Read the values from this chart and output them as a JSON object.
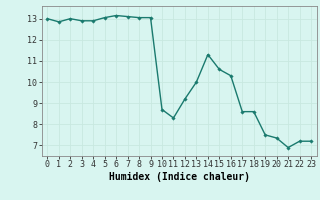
{
  "x": [
    0,
    1,
    2,
    3,
    4,
    5,
    6,
    7,
    8,
    9,
    10,
    11,
    12,
    13,
    14,
    15,
    16,
    17,
    18,
    19,
    20,
    21,
    22,
    23
  ],
  "y": [
    13.0,
    12.85,
    13.0,
    12.9,
    12.9,
    13.05,
    13.15,
    13.1,
    13.05,
    13.05,
    8.7,
    8.3,
    9.2,
    10.0,
    11.3,
    10.6,
    10.3,
    8.6,
    8.6,
    7.5,
    7.35,
    6.9,
    7.2,
    7.2
  ],
  "line_color": "#1a7a6e",
  "marker": "D",
  "marker_size": 1.8,
  "linewidth": 1.0,
  "bg_color": "#d8f5f0",
  "grid_color": "#c8e8e0",
  "grid_color_minor": "#e0f0ec",
  "xlabel": "Humidex (Indice chaleur)",
  "xlabel_fontsize": 7,
  "xlabel_fontfamily": "monospace",
  "ylabel_ticks": [
    7,
    8,
    9,
    10,
    11,
    12,
    13
  ],
  "xtick_labels": [
    "0",
    "1",
    "2",
    "3",
    "4",
    "5",
    "6",
    "7",
    "8",
    "9",
    "10",
    "11",
    "12",
    "13",
    "14",
    "15",
    "16",
    "17",
    "18",
    "19",
    "20",
    "21",
    "22",
    "23"
  ],
  "ylim": [
    6.5,
    13.6
  ],
  "xlim": [
    -0.5,
    23.5
  ],
  "tick_fontsize": 6,
  "tick_fontfamily": "monospace"
}
